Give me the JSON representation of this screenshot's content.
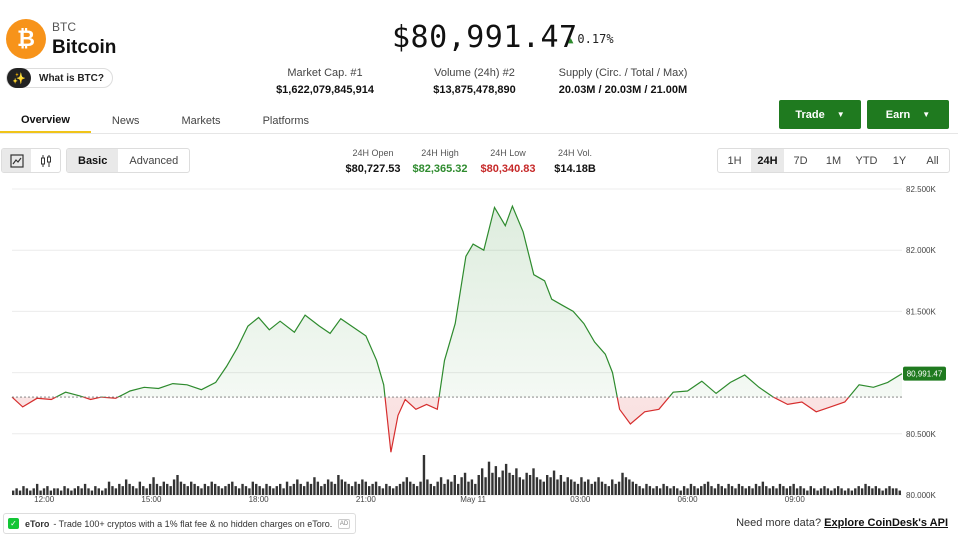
{
  "coin": {
    "symbol": "BTC",
    "name": "Bitcoin",
    "logo_glyph": "₿",
    "what_is": "What is BTC?"
  },
  "price": {
    "value": "$80,991.47",
    "change": "0.17%",
    "direction": "up"
  },
  "stats": [
    {
      "label": "Market Cap. #1",
      "value": "$1,622,079,845,914"
    },
    {
      "label": "Volume (24h) #2",
      "value": "$13,875,478,890"
    },
    {
      "label": "Supply (Circ. / Total / Max)",
      "value": "20.03M / 20.03M / 21.00M"
    }
  ],
  "tabs": [
    "Overview",
    "News",
    "Markets",
    "Platforms"
  ],
  "active_tab": "Overview",
  "actions": {
    "trade": "Trade",
    "earn": "Earn"
  },
  "chart_controls": {
    "modes": [
      "Basic",
      "Advanced"
    ],
    "active_mode": "Basic",
    "ranges": [
      "1H",
      "24H",
      "7D",
      "1M",
      "YTD",
      "1Y",
      "All"
    ],
    "active_range": "24H",
    "icons": [
      "line-chart-icon",
      "candlestick-icon"
    ]
  },
  "day_stats": [
    {
      "label": "24H Open",
      "value": "$80,727.53",
      "color": "#111111"
    },
    {
      "label": "24H High",
      "value": "$82,365.32",
      "color": "#2e8b2e"
    },
    {
      "label": "24H Low",
      "value": "$80,340.83",
      "color": "#c62828"
    },
    {
      "label": "24H Vol.",
      "value": "$14.18B",
      "color": "#111111"
    }
  ],
  "chart_data": {
    "type": "line",
    "y_ticks": [
      "82.500K",
      "82.000K",
      "81.500K",
      "81.000K",
      "80.500K",
      "80.000K"
    ],
    "y_tick_values": [
      82500,
      82000,
      81500,
      81000,
      80500,
      80000
    ],
    "ylim": [
      80000,
      82500
    ],
    "x_ticks": [
      "12:00",
      "15:00",
      "18:00",
      "21:00",
      "May 11",
      "03:00",
      "06:00",
      "09:00"
    ],
    "x_tick_hours": [
      12,
      15,
      18,
      21,
      24,
      27,
      30,
      33
    ],
    "baseline": 80800,
    "current_label": "80,991.47",
    "current_value": 80991.47,
    "colors": {
      "up": "#2e8b2e",
      "down": "#d62e2e"
    },
    "series": [
      {
        "values": [
          [
            11.1,
            80800
          ],
          [
            11.4,
            80720
          ],
          [
            11.8,
            80790
          ],
          [
            12.2,
            80780
          ],
          [
            12.6,
            80840
          ],
          [
            13.0,
            80810
          ],
          [
            13.3,
            80780
          ],
          [
            13.6,
            80800
          ],
          [
            14.0,
            80790
          ],
          [
            14.4,
            80850
          ],
          [
            14.8,
            80880
          ],
          [
            15.2,
            80870
          ],
          [
            15.6,
            80910
          ],
          [
            16.0,
            80900
          ],
          [
            16.4,
            80860
          ],
          [
            16.8,
            80920
          ],
          [
            17.1,
            81050
          ],
          [
            17.4,
            81200
          ],
          [
            17.7,
            81380
          ],
          [
            18.0,
            81450
          ],
          [
            18.3,
            81350
          ],
          [
            18.6,
            81420
          ],
          [
            19.0,
            81330
          ],
          [
            19.3,
            81470
          ],
          [
            19.7,
            81380
          ],
          [
            20.0,
            81320
          ],
          [
            20.3,
            81440
          ],
          [
            20.6,
            81380
          ],
          [
            21.0,
            81300
          ],
          [
            21.3,
            81100
          ],
          [
            21.5,
            80900
          ],
          [
            21.7,
            80350
          ],
          [
            21.9,
            80650
          ],
          [
            22.1,
            80780
          ],
          [
            22.4,
            80700
          ],
          [
            22.7,
            80740
          ],
          [
            23.0,
            80700
          ],
          [
            23.2,
            81100
          ],
          [
            23.5,
            81400
          ],
          [
            23.8,
            81950
          ],
          [
            24.0,
            82050
          ],
          [
            24.3,
            82000
          ],
          [
            24.6,
            82350
          ],
          [
            24.9,
            82200
          ],
          [
            25.1,
            82360
          ],
          [
            25.4,
            82150
          ],
          [
            25.7,
            81800
          ],
          [
            26.0,
            81750
          ],
          [
            26.2,
            81600
          ],
          [
            26.5,
            81550
          ],
          [
            26.8,
            81500
          ],
          [
            27.1,
            81400
          ],
          [
            27.4,
            81250
          ],
          [
            27.7,
            81150
          ],
          [
            27.9,
            81000
          ],
          [
            28.1,
            80700
          ],
          [
            28.4,
            80580
          ],
          [
            28.8,
            80680
          ],
          [
            29.2,
            80700
          ],
          [
            29.6,
            80840
          ],
          [
            30.0,
            80850
          ],
          [
            30.4,
            80930
          ],
          [
            30.8,
            80830
          ],
          [
            31.2,
            80920
          ],
          [
            31.6,
            80980
          ],
          [
            32.0,
            80880
          ],
          [
            32.4,
            80800
          ],
          [
            32.8,
            80740
          ],
          [
            33.2,
            80760
          ],
          [
            33.6,
            80680
          ],
          [
            34.0,
            80720
          ],
          [
            34.4,
            80760
          ],
          [
            34.8,
            80900
          ],
          [
            35.2,
            80880
          ],
          [
            35.6,
            80920
          ],
          [
            36.0,
            80991
          ]
        ]
      }
    ],
    "volume": [
      2,
      3,
      2,
      4,
      3,
      2,
      3,
      5,
      2,
      3,
      4,
      2,
      3,
      3,
      2,
      4,
      3,
      2,
      3,
      4,
      3,
      5,
      3,
      2,
      4,
      3,
      2,
      3,
      6,
      4,
      3,
      5,
      4,
      7,
      5,
      4,
      3,
      6,
      4,
      3,
      5,
      8,
      5,
      4,
      6,
      5,
      4,
      7,
      9,
      6,
      5,
      4,
      6,
      5,
      4,
      3,
      5,
      4,
      6,
      5,
      4,
      3,
      4,
      5,
      6,
      4,
      3,
      5,
      4,
      3,
      6,
      5,
      4,
      3,
      5,
      4,
      3,
      4,
      5,
      3,
      6,
      4,
      5,
      7,
      5,
      4,
      6,
      5,
      8,
      6,
      4,
      5,
      7,
      6,
      5,
      9,
      7,
      6,
      5,
      4,
      6,
      5,
      7,
      6,
      4,
      5,
      6,
      4,
      3,
      5,
      4,
      3,
      4,
      5,
      6,
      8,
      6,
      5,
      4,
      6,
      18,
      7,
      5,
      4,
      6,
      8,
      5,
      7,
      6,
      9,
      5,
      8,
      10,
      6,
      7,
      5,
      9,
      12,
      8,
      15,
      10,
      13,
      8,
      11,
      14,
      10,
      9,
      12,
      8,
      7,
      10,
      9,
      12,
      8,
      7,
      6,
      9,
      8,
      11,
      7,
      9,
      6,
      8,
      7,
      6,
      5,
      8,
      6,
      7,
      5,
      6,
      8,
      6,
      5,
      4,
      7,
      5,
      6,
      10,
      8,
      7,
      6,
      5,
      4,
      3,
      5,
      4,
      3,
      4,
      3,
      5,
      4,
      3,
      4,
      3,
      2,
      4,
      3,
      5,
      4,
      3,
      4,
      5,
      6,
      4,
      3,
      5,
      4,
      3,
      5,
      4,
      3,
      5,
      4,
      3,
      4,
      3,
      5,
      4,
      6,
      4,
      3,
      4,
      3,
      5,
      4,
      3,
      4,
      5,
      3,
      4,
      3,
      2,
      4,
      3,
      2,
      3,
      4,
      3,
      2,
      3,
      4,
      3,
      2,
      3,
      2,
      3,
      4,
      3,
      5,
      4,
      3,
      4,
      3,
      2,
      3,
      4,
      3,
      3,
      2
    ]
  },
  "ad": {
    "brand": "eToro",
    "text": "- Trade 100+ cryptos with a 1% flat fee & no hidden charges on eToro.",
    "chip": "AD"
  },
  "footer": {
    "text": "Need more data?",
    "link": "Explore CoinDesk's API"
  }
}
